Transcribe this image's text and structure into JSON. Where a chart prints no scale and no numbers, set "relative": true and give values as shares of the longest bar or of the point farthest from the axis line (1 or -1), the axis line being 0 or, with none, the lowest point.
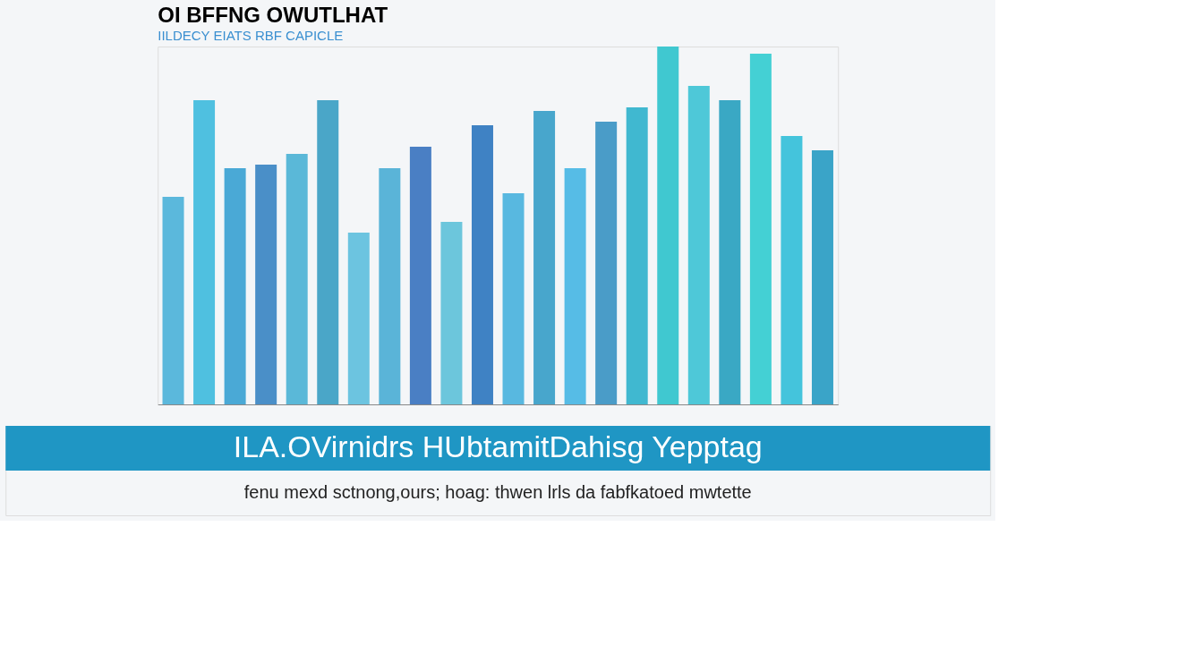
{
  "chart_data": {
    "type": "bar",
    "title": "OI BFFNG OWUTLHAT",
    "subtitle": "IILDECY EIATS RBF CAPICLE",
    "relative": true,
    "categories": [
      null,
      null,
      null,
      null,
      null,
      null,
      null,
      null,
      null,
      null,
      null,
      null,
      null,
      null,
      null,
      null,
      null,
      null,
      null,
      null,
      null,
      null
    ],
    "values": [
      0.58,
      0.85,
      0.66,
      0.67,
      0.7,
      0.85,
      0.48,
      0.66,
      0.72,
      0.51,
      0.78,
      0.59,
      0.82,
      0.66,
      0.79,
      0.83,
      1,
      0.89,
      0.85,
      0.98,
      0.75,
      0.71
    ],
    "colors": [
      "#5bb8dc",
      "#4fc0e0",
      "#4aa9d6",
      "#4a8fc8",
      "#5ab8d8",
      "#4aa6c8",
      "#6cc4e0",
      "#5ab4d8",
      "#4a7fc4",
      "#6cc6dc",
      "#3f82c4",
      "#58b8e0",
      "#48a6cc",
      "#56bce6",
      "#4a9cc8",
      "#40b8d0",
      "#40c8d0",
      "#4ec8d8",
      "#3aa8c4",
      "#44d0d4",
      "#44c4dc",
      "#3aa4c8"
    ],
    "annotations": [
      "ILA.OVirnidrs HUbtamitDahisg Yepptag",
      "fenu mexd sctnong,ours; hoag: thwen lrls da fabfkatoed mwtette"
    ]
  }
}
